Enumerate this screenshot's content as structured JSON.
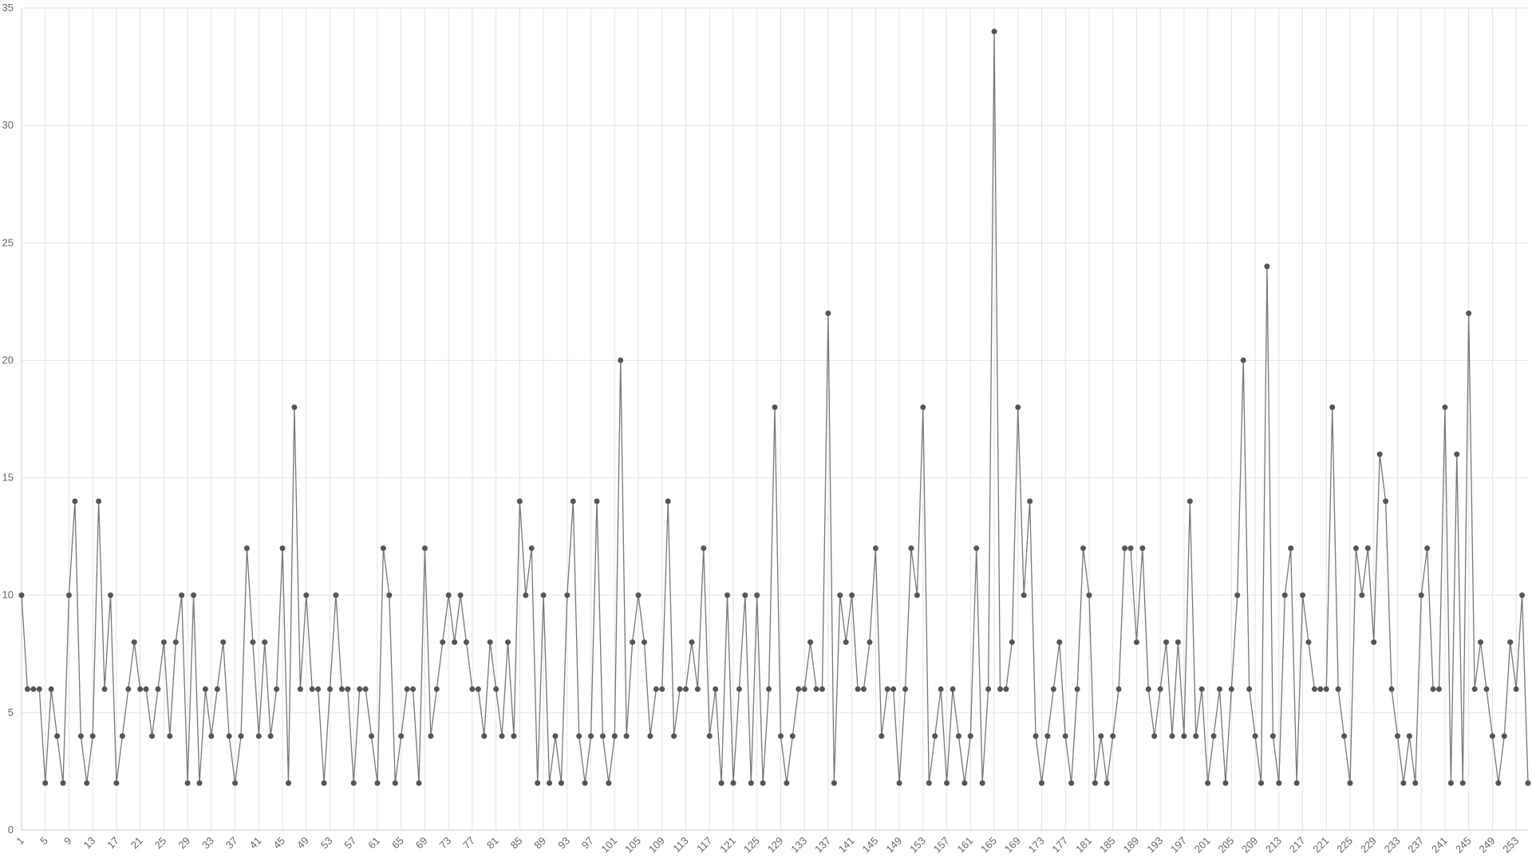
{
  "chart_data": {
    "type": "line",
    "color": "#777777",
    "marker_color": "#555555",
    "grid": true,
    "categories": [
      "1",
      null,
      null,
      null,
      "5",
      null,
      null,
      null,
      "9",
      null,
      null,
      null,
      "13",
      null,
      null,
      null,
      "17",
      null,
      null,
      null,
      "21",
      null,
      null,
      null,
      "25",
      null,
      null,
      null,
      "29",
      null,
      null,
      null,
      "33",
      null,
      null,
      null,
      "37",
      null,
      null,
      null,
      "41",
      null,
      null,
      null,
      "45",
      null,
      null,
      null,
      "49",
      null,
      null,
      null,
      "53",
      null,
      null,
      null,
      "57",
      null,
      null,
      null,
      "61",
      null,
      null,
      null,
      "65",
      null,
      null,
      null,
      "69",
      null,
      null,
      null,
      "73",
      null,
      null,
      null,
      "77",
      null,
      null,
      null,
      "81",
      null,
      null,
      null,
      "85",
      null,
      null,
      null,
      "89",
      null,
      null,
      null,
      "93",
      null,
      null,
      null,
      "97",
      null,
      null,
      null,
      "101",
      null,
      null,
      null,
      "105",
      null,
      null,
      null,
      "109",
      null,
      null,
      null,
      "113",
      null,
      null,
      null,
      "117",
      null,
      null,
      null,
      "121",
      null,
      null,
      null,
      "125",
      null,
      null,
      null,
      "129",
      null,
      null,
      null,
      "133",
      null,
      null,
      null,
      "137",
      null,
      null,
      null,
      "141",
      null,
      null,
      null,
      "145",
      null,
      null,
      null,
      "149",
      null,
      null,
      null,
      "153",
      null,
      null,
      null,
      "157",
      null,
      null,
      null,
      "161",
      null,
      null,
      null,
      "165",
      null,
      null,
      null,
      "169",
      null,
      null,
      null,
      "173",
      null,
      null,
      null,
      "177",
      null,
      null,
      null,
      "181",
      null,
      null,
      null,
      "185",
      null,
      null,
      null,
      "189",
      null,
      null,
      null,
      "193",
      null,
      null,
      null,
      "197",
      null,
      null,
      null,
      "201",
      null,
      null,
      null,
      "205",
      null,
      null,
      null,
      "209",
      null,
      null,
      null,
      "213",
      null,
      null,
      null,
      "217",
      null,
      null,
      null,
      "221",
      null,
      null,
      null,
      "225",
      null,
      null,
      null,
      "229",
      null,
      null,
      null,
      "233",
      null,
      null,
      null,
      "237",
      null,
      null,
      null,
      "241",
      null,
      null,
      null,
      "245",
      null,
      null,
      null,
      "249",
      null,
      null,
      null,
      "253",
      null,
      null
    ],
    "values": [
      10,
      6,
      6,
      6,
      2,
      6,
      4,
      2,
      10,
      14,
      4,
      2,
      4,
      14,
      6,
      10,
      2,
      4,
      6,
      8,
      6,
      6,
      4,
      6,
      8,
      4,
      8,
      10,
      2,
      10,
      2,
      6,
      4,
      6,
      8,
      4,
      2,
      4,
      12,
      8,
      4,
      8,
      4,
      6,
      12,
      2,
      18,
      6,
      10,
      6,
      6,
      2,
      6,
      10,
      6,
      6,
      2,
      6,
      6,
      4,
      2,
      12,
      10,
      2,
      4,
      6,
      6,
      2,
      12,
      4,
      6,
      8,
      10,
      8,
      10,
      8,
      6,
      6,
      4,
      8,
      6,
      4,
      8,
      4,
      14,
      10,
      12,
      2,
      10,
      2,
      4,
      2,
      10,
      14,
      4,
      2,
      4,
      14,
      4,
      2,
      4,
      20,
      4,
      8,
      10,
      8,
      4,
      6,
      6,
      14,
      4,
      6,
      6,
      8,
      6,
      12,
      4,
      6,
      2,
      10,
      2,
      6,
      10,
      2,
      10,
      2,
      6,
      18,
      4,
      2,
      4,
      6,
      6,
      8,
      6,
      6,
      22,
      2,
      10,
      8,
      10,
      6,
      6,
      8,
      12,
      4,
      6,
      6,
      2,
      6,
      12,
      10,
      18,
      2,
      4,
      6,
      2,
      6,
      4,
      2,
      4,
      12,
      2,
      6,
      34,
      6,
      6,
      8,
      18,
      10,
      14,
      4,
      2,
      4,
      6,
      8,
      4,
      2,
      6,
      12,
      10,
      2,
      4,
      2,
      4,
      6,
      12,
      12,
      8,
      12,
      6,
      4,
      6,
      8,
      4,
      8,
      4,
      14,
      4,
      6,
      2,
      4,
      6,
      2,
      6,
      10,
      20,
      6,
      4,
      2,
      24,
      4,
      2,
      10,
      12,
      2,
      10,
      8,
      6,
      6,
      6,
      18,
      6,
      4,
      2,
      12,
      10,
      12,
      8,
      16,
      14,
      6,
      4,
      2,
      4,
      2,
      10,
      12,
      6,
      6,
      18,
      2,
      16,
      2,
      22,
      6,
      8,
      6,
      4,
      2,
      4,
      8,
      6,
      10,
      2
    ],
    "ylim": [
      0,
      35
    ],
    "yticks": [
      0,
      5,
      10,
      15,
      20,
      25,
      30,
      35
    ]
  }
}
